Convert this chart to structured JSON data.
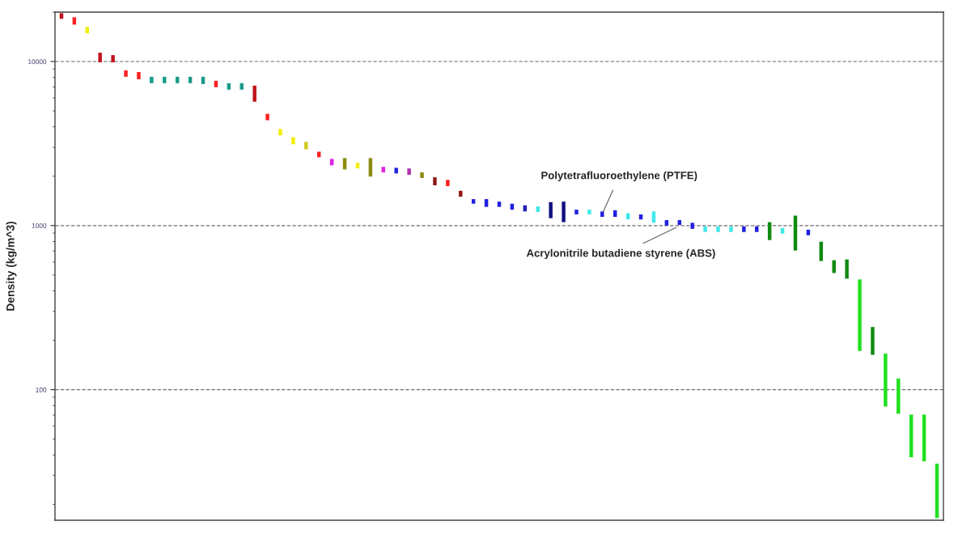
{
  "chart_data": {
    "type": "bar",
    "ylabel": "Density (kg/m^3)",
    "log": "y",
    "ylim": [
      16,
      20000
    ],
    "yticks": [
      100,
      1000,
      10000
    ],
    "grid": "y",
    "tick_labels": "y",
    "categories": [
      null,
      null,
      null,
      null,
      null,
      null,
      null,
      null,
      null,
      null,
      null,
      null,
      null,
      null,
      null,
      null,
      null,
      null,
      null,
      null,
      null,
      null,
      null,
      null,
      null,
      null,
      null,
      null,
      null,
      null,
      null,
      null,
      null,
      null,
      null,
      null,
      null,
      null,
      null,
      null,
      null,
      null,
      null,
      null,
      null,
      null,
      null,
      null,
      null,
      null,
      null,
      null,
      null,
      null,
      null,
      null,
      null,
      null,
      null,
      null,
      null,
      null,
      null,
      null,
      null,
      null,
      null,
      null,
      null
    ],
    "base": [
      18200,
      16790,
      14860,
      9890,
      9890,
      8070,
      7800,
      7380,
      7380,
      7380,
      7380,
      7290,
      6970,
      6740,
      6740,
      5690,
      4390,
      3540,
      3130,
      2920,
      2610,
      2330,
      2200,
      2230,
      1990,
      2110,
      2080,
      2040,
      1950,
      1760,
      1740,
      1500,
      1360,
      1300,
      1300,
      1250,
      1220,
      1210,
      1110,
      1050,
      1170,
      1170,
      1130,
      1130,
      1090,
      1090,
      1040,
      1000,
      1010,
      955,
      914,
      914,
      914,
      914,
      914,
      816,
      893,
      705,
      873,
      608,
      514,
      475,
      172,
      163,
      78.9,
      71.3,
      38.7,
      36.6,
      16.5
    ],
    "values": [
      1500,
      1830,
      1390,
      1430,
      1050,
      760,
      830,
      690,
      690,
      690,
      690,
      780,
      660,
      640,
      640,
      1440,
      410,
      340,
      330,
      320,
      210,
      220,
      380,
      180,
      590,
      170,
      170,
      190,
      160,
      210,
      160,
      130,
      90,
      150,
      100,
      110,
      110,
      100,
      280,
      350,
      80,
      80,
      90,
      110,
      100,
      80,
      180,
      80,
      70,
      85,
      75,
      75,
      75,
      75,
      75,
      234,
      73,
      445,
      71,
      190,
      101,
      147,
      298,
      78,
      87.1,
      45.7,
      31.8,
      33.9,
      18.9
    ],
    "colors": [
      "#c0141c",
      "#ff2020",
      "#f0f000",
      "#c0141c",
      "#c0141c",
      "#ff2020",
      "#ff2020",
      "#1a9a8a",
      "#1a9a8a",
      "#1a9a8a",
      "#1a9a8a",
      "#1a9a8a",
      "#ff2020",
      "#1a9a8a",
      "#1a9a8a",
      "#c0141c",
      "#ff2020",
      "#f0f000",
      "#f0f000",
      "#d0c820",
      "#ff2020",
      "#e020e0",
      "#8a8a10",
      "#f0f000",
      "#8a8a10",
      "#e020e0",
      "#2020e0",
      "#b030b0",
      "#8a8a10",
      "#901818",
      "#ff2020",
      "#901818",
      "#2020e0",
      "#2020e0",
      "#2020e0",
      "#2020e0",
      "#2020b0",
      "#40e8e8",
      "#101080",
      "#101080",
      "#2020e0",
      "#40e8e8",
      "#2020e0",
      "#2020e0",
      "#40e8e8",
      "#2020e0",
      "#40e8e8",
      "#2020e0",
      "#2020e0",
      "#2020e0",
      "#40e8e8",
      "#40e8e8",
      "#40e8e8",
      "#2020e0",
      "#2020e0",
      "#108a10",
      "#40e8e8",
      "#108a10",
      "#2020e0",
      "#108a10",
      "#108a10",
      "#108a10",
      "#20e020",
      "#108a10",
      "#20e020",
      "#20e020",
      "#20e020",
      "#20e020",
      "#20e020"
    ],
    "annotations": [
      "Polytetrafluoroethylene (PTFE)",
      "Acrylonitrile butadiene styrene (ABS)"
    ]
  }
}
